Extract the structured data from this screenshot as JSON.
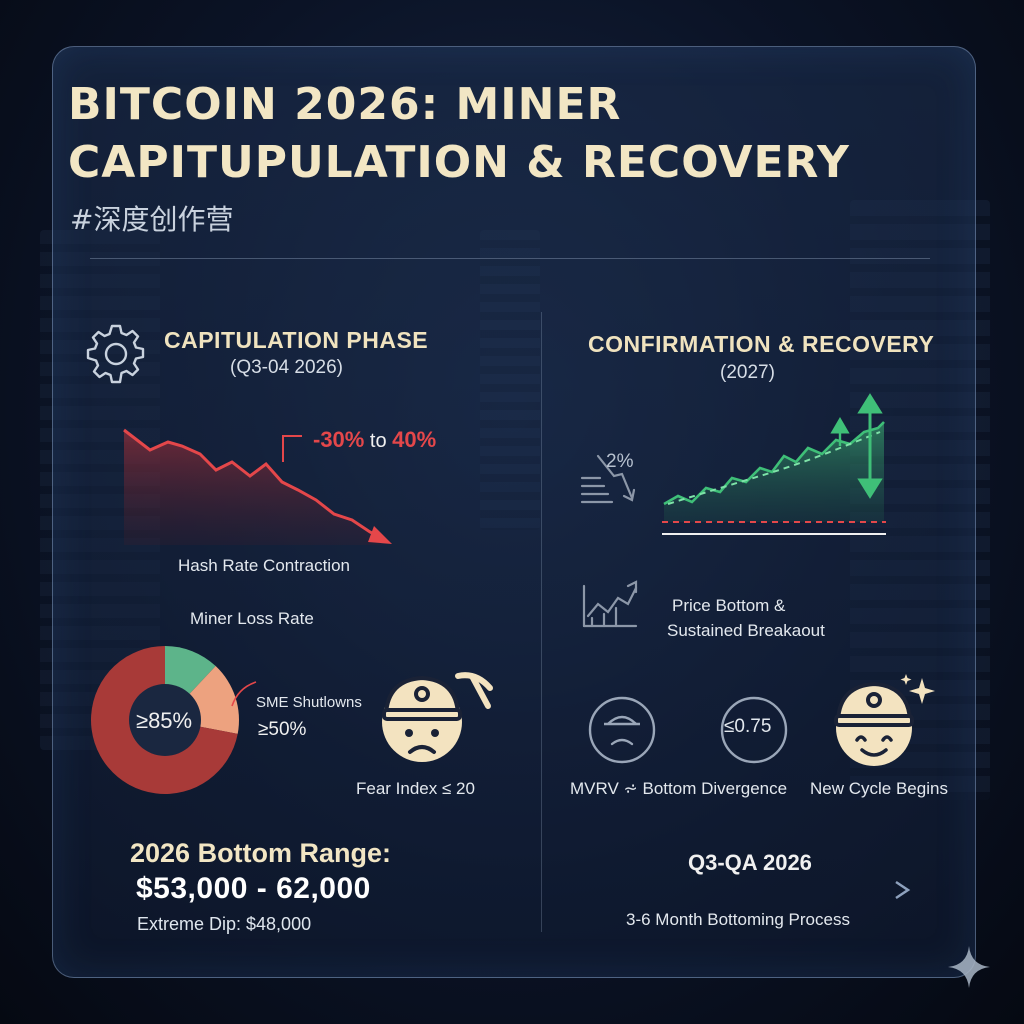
{
  "header": {
    "title_line1": "BITCOIN 2026: MINER",
    "title_line2": "CAPITUPULATION & RECOVERY",
    "hashtag": "#深度创作营"
  },
  "left": {
    "phase_title": "CAPITULATION PHASE",
    "phase_period": "(Q3-04 2026)",
    "hash_change_a": "-30%",
    "hash_change_to": " to ",
    "hash_change_b": "40%",
    "hash_label": "Hash Rate Contraction",
    "loss_label": "Miner Loss Rate",
    "loss_value": "≥85%",
    "sme_label": "SME Shutlowns",
    "sme_value": "≥50%",
    "fear_label": "Fear Index ≤ 20",
    "bottom_title": "2026 Bottom Range:",
    "bottom_range": "$53,000 - 62,000",
    "extreme_dip": "Extreme Dip: $48,000"
  },
  "right": {
    "phase_title": "CONFIRMATION & RECOVERY",
    "phase_period": "(2027)",
    "drop_value": "2%",
    "price_label_1": "Price Bottom &",
    "price_label_2": "Sustained Breakaout",
    "mvrv_value": "≤0.75",
    "mvrv_label": "MVRV ⩫ Bottom Divergence",
    "cycle_label": "New Cycle Begins",
    "timeline_title": "Q3-QA 2026",
    "timeline_label": "3-6 Month Bottoming Process"
  },
  "donut": {
    "segments": [
      {
        "name": "Miner Loss",
        "share": 0.72,
        "color": "#a83a38"
      },
      {
        "name": "SME Shutdowns",
        "share": 0.16,
        "color": "#eda27f"
      },
      {
        "name": "Remaining",
        "share": 0.12,
        "color": "#5db48a"
      }
    ]
  },
  "colors": {
    "accent_red": "#e4474a",
    "accent_green": "#3fbf78",
    "title_cream": "#f2e6c4"
  }
}
